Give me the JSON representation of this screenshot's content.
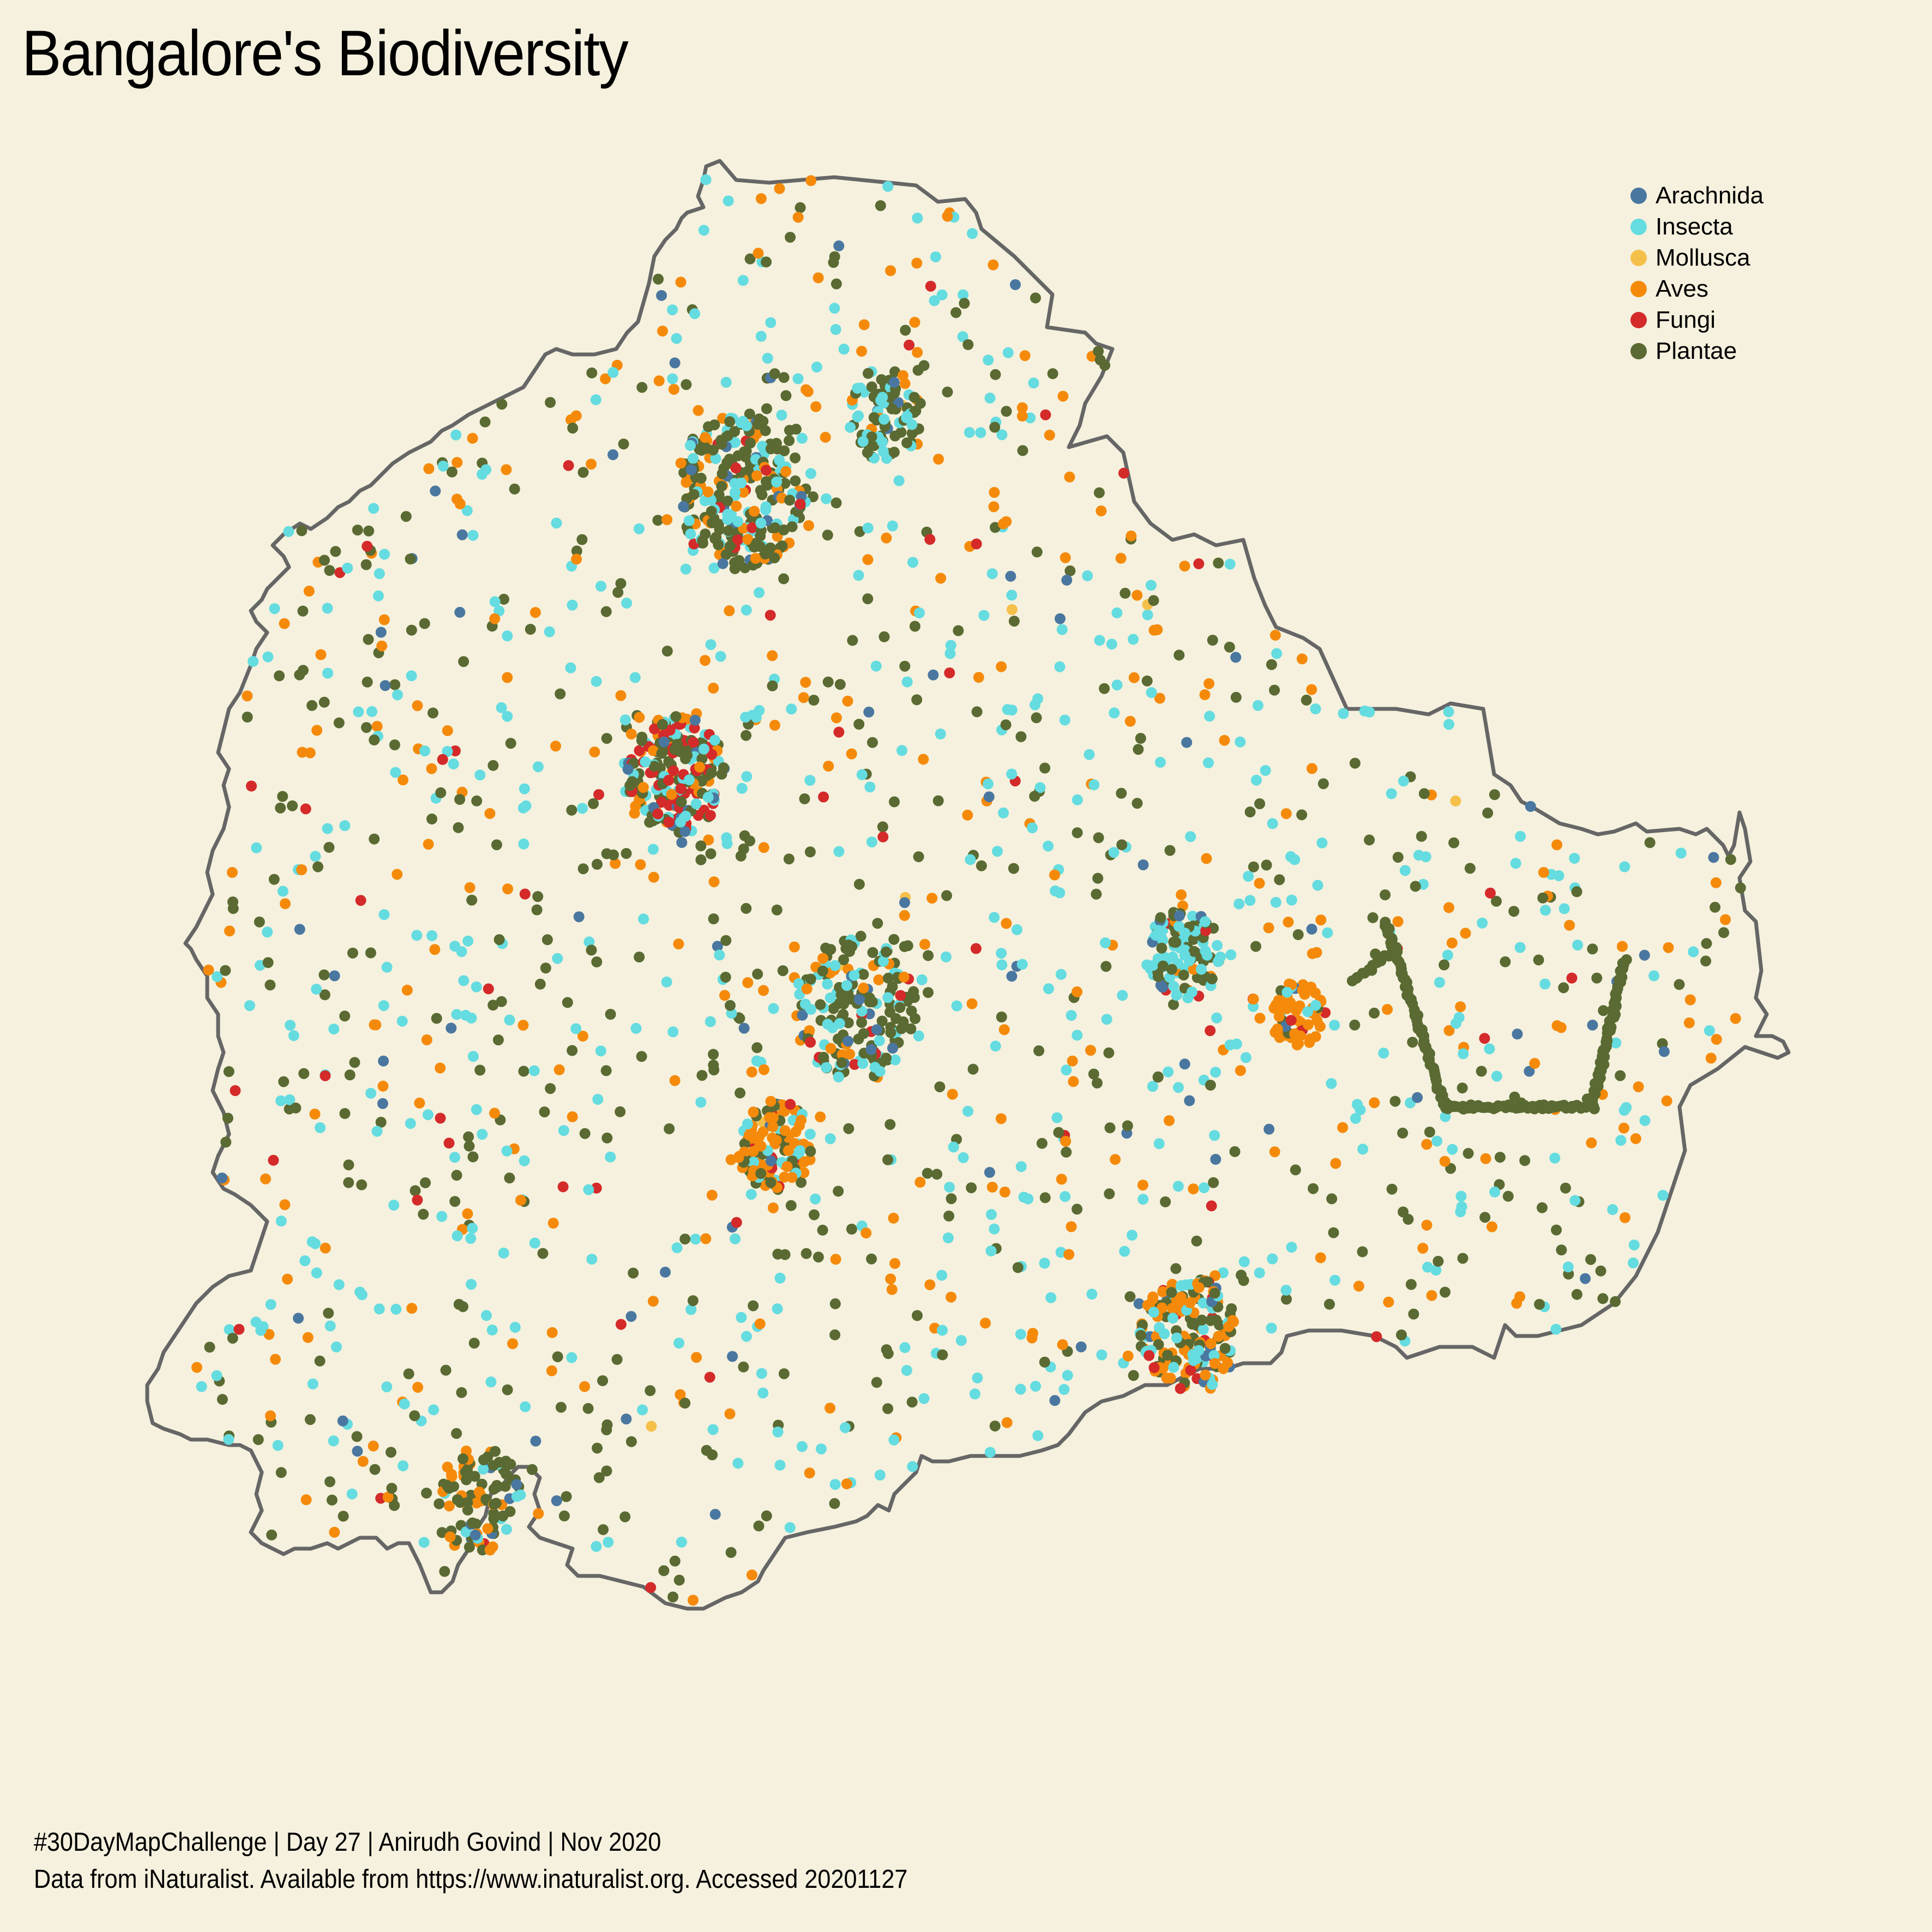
{
  "title": "Bangalore's Biodiversity",
  "legend": {
    "position": "top-right",
    "items": [
      {
        "label": "Arachnida",
        "color": "#4a77a0"
      },
      {
        "label": "Insecta",
        "color": "#64dce0"
      },
      {
        "label": "Mollusca",
        "color": "#f5c04a"
      },
      {
        "label": "Aves",
        "color": "#f58a0a"
      },
      {
        "label": "Fungi",
        "color": "#d42a2a"
      },
      {
        "label": "Plantae",
        "color": "#5a6a32"
      }
    ]
  },
  "caption": {
    "line1": "#30DayMapChallenge | Day 27 | Anirudh Govind | Nov 2020",
    "line2": "Data from iNaturalist. Available from https://www.inaturalist.org. Accessed 20201127"
  },
  "map": {
    "boundary_color": "#666666",
    "land_color": "#f5f1de"
  }
}
